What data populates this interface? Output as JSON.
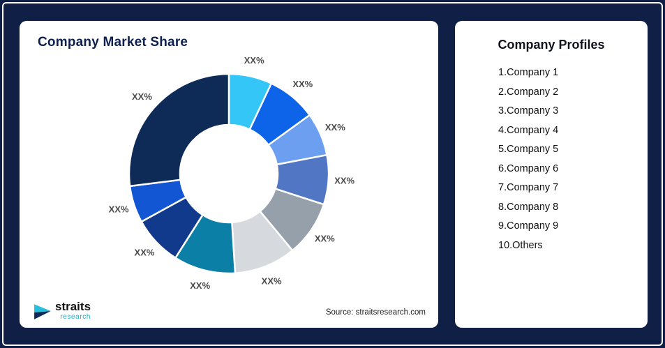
{
  "colors": {
    "background": "#0f1f45",
    "card": "#ffffff",
    "slice_label": "#4a4a4a",
    "title": "#0d1f4e",
    "logo_accent": "#18aec6"
  },
  "left_card": {
    "title": "Company Market Share",
    "source": "Source: straitsresearch.com",
    "logo_name": "straits",
    "logo_sub": "research"
  },
  "right_card": {
    "title": "Company Profiles",
    "items": [
      "1.Company 1",
      "2.Company 2",
      "3.Company 3",
      "4.Company 4",
      "5.Company 5",
      "6.Company 6",
      "7.Company 7",
      "8.Company 8",
      "9.Company 9",
      "10.Others"
    ]
  },
  "chart_data": {
    "type": "pie",
    "subtype": "donut",
    "title": "Company Market Share",
    "source": "Source: straitsresearch.com",
    "legend": "none",
    "direction": "clockwise",
    "start_angle_deg": 0,
    "inner_radius_ratio": 0.49,
    "note": "All slice data labels are shown as placeholder percentages 'XX%'",
    "segments": [
      {
        "label": "XX%",
        "value": 7,
        "color": "#33c6f6"
      },
      {
        "label": "XX%",
        "value": 8,
        "color": "#0d64e8"
      },
      {
        "label": "XX%",
        "value": 7,
        "color": "#6d9ff0"
      },
      {
        "label": "XX%",
        "value": 8,
        "color": "#5176c4"
      },
      {
        "label": "XX%",
        "value": 9,
        "color": "#96a0ab"
      },
      {
        "label": "XX%",
        "value": 10,
        "color": "#d6dade"
      },
      {
        "label": "XX%",
        "value": 10,
        "color": "#0b7fa5"
      },
      {
        "label": "XX%",
        "value": 8,
        "color": "#113a8c"
      },
      {
        "label": "XX%",
        "value": 6,
        "color": "#1356d4"
      },
      {
        "label": "XX%",
        "value": 27,
        "color": "#0e2a56"
      }
    ]
  }
}
